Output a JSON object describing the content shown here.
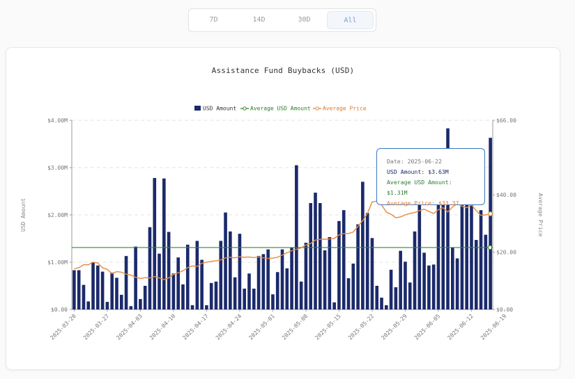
{
  "range_tabs": [
    {
      "label": "7D",
      "active": false
    },
    {
      "label": "14D",
      "active": false
    },
    {
      "label": "30D",
      "active": false
    },
    {
      "label": "All",
      "active": true
    }
  ],
  "colors": {
    "bar": "#1b2a6b",
    "average": "#2e8b2e",
    "price": "#e58a3f",
    "grid": "#e3e3e3",
    "tooltip_border": "#3a78c6"
  },
  "tooltip": {
    "date": "Date: 2025-06-22",
    "usd": "USD Amount: $3.63M",
    "avg": "Average USD Amount: $1.31M",
    "price": "Average Price: $33.37"
  },
  "chart_data": {
    "type": "bar",
    "title": "Assistance Fund Buybacks (USD)",
    "xlabel": "",
    "ylabel": "USD Amount",
    "y2label": "Average Price",
    "ylim": [
      0,
      4000000
    ],
    "y2lim": [
      0,
      66
    ],
    "yticks": [
      "$0.00",
      "$1.00M",
      "$2.00M",
      "$3.00M",
      "$4.00M"
    ],
    "y2ticks": [
      "$0.00",
      "$20.00",
      "$40.00",
      "$66.00"
    ],
    "y2tick_values": [
      0,
      20,
      40,
      66
    ],
    "legend": [
      "USD Amount",
      "Average USD Amount",
      "Average Price"
    ],
    "legend_position": "top-center",
    "grid": true,
    "start_date": "2025-03-20",
    "xticks": [
      "2025-03-20",
      "2025-03-27",
      "2025-04-03",
      "2025-04-10",
      "2025-04-17",
      "2025-04-24",
      "2025-05-01",
      "2025-05-08",
      "2025-05-15",
      "2025-05-22",
      "2025-05-29",
      "2025-06-05",
      "2025-06-12",
      "2025-06-19"
    ],
    "average_usd": 1310000,
    "series": [
      {
        "name": "USD Amount",
        "type": "bar",
        "values": [
          830000,
          830000,
          520000,
          170000,
          1000000,
          930000,
          800000,
          160000,
          780000,
          670000,
          310000,
          1130000,
          70000,
          1330000,
          220000,
          500000,
          1740000,
          2780000,
          1180000,
          2770000,
          1640000,
          760000,
          1100000,
          530000,
          1370000,
          90000,
          1450000,
          1050000,
          90000,
          560000,
          590000,
          1450000,
          2050000,
          1650000,
          680000,
          1600000,
          440000,
          760000,
          440000,
          1130000,
          1170000,
          1270000,
          320000,
          790000,
          1270000,
          870000,
          1300000,
          3050000,
          590000,
          1410000,
          2250000,
          2470000,
          2250000,
          1250000,
          1530000,
          150000,
          1870000,
          2100000,
          660000,
          970000,
          1800000,
          2700000,
          2040000,
          1510000,
          500000,
          250000,
          90000,
          840000,
          470000,
          1240000,
          1010000,
          570000,
          1650000,
          2280000,
          1200000,
          930000,
          950000,
          2260000,
          2460000,
          3830000,
          1310000,
          1080000,
          2260000,
          2880000,
          2250000,
          1470000,
          2100000,
          1580000,
          3630000
        ]
      },
      {
        "name": "Average Price",
        "type": "line",
        "values": [
          14.2,
          14.6,
          15.6,
          15.6,
          16.5,
          16.2,
          14.5,
          14.0,
          12.5,
          13.2,
          13.0,
          12.3,
          12.0,
          11.2,
          10.8,
          11.1,
          11.0,
          11.5,
          11.0,
          10.4,
          11.0,
          12.2,
          12.8,
          13.5,
          14.6,
          15.2,
          15.0,
          16.1,
          16.5,
          16.8,
          17.0,
          17.3,
          18.0,
          18.2,
          18.0,
          18.4,
          18.2,
          18.3,
          18.1,
          18.3,
          18.0,
          17.8,
          17.9,
          18.2,
          19.0,
          19.8,
          20.5,
          21.0,
          21.5,
          22.5,
          23.0,
          24.2,
          24.5,
          24.5,
          24.6,
          24.8,
          26.0,
          26.5,
          26.5,
          27.0,
          29.0,
          31.0,
          33.5,
          37.5,
          37.8,
          36.5,
          34.0,
          33.2,
          32.0,
          32.3,
          33.0,
          33.5,
          33.8,
          34.5,
          35.0,
          34.2,
          33.5,
          34.8,
          35.5,
          34.0,
          35.8,
          37.0,
          36.0,
          35.5,
          36.5,
          34.5,
          32.8,
          33.0,
          33.37
        ]
      }
    ]
  }
}
